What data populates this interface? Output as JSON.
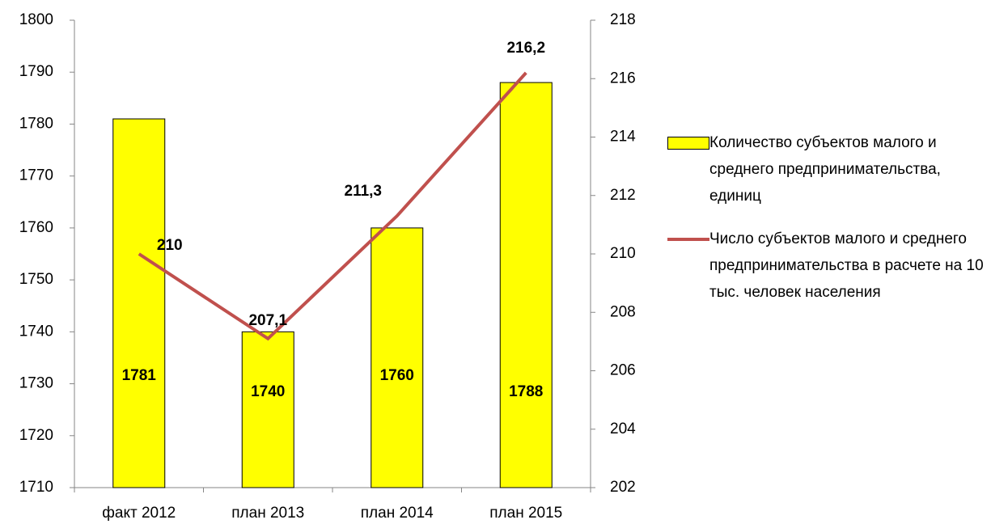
{
  "chart_data": {
    "type": "bar_line",
    "categories": [
      "факт 2012",
      "план 2013",
      "план 2014",
      "план 2015"
    ],
    "series": [
      {
        "name": "Количество субъектов малого и среднего предпринимательства, единиц",
        "type": "bar",
        "color": "#ffff00",
        "values": [
          1781,
          1740,
          1760,
          1788
        ]
      },
      {
        "name": "Число субъектов малого и среднего предпринимательства в расчете на 10 тыс. человек населения",
        "type": "line",
        "axis": "y2",
        "color": "#c0504d",
        "values": [
          210,
          207.1,
          211.3,
          216.2
        ],
        "value_labels": [
          "210",
          "207,1",
          "211,3",
          "216,2"
        ]
      }
    ],
    "ylim": [
      1710,
      1800
    ],
    "yticks": [
      1710,
      1720,
      1730,
      1740,
      1750,
      1760,
      1770,
      1780,
      1790,
      1800
    ],
    "y2lim": [
      202,
      218
    ],
    "y2ticks": [
      202,
      204,
      206,
      208,
      210,
      212,
      214,
      216,
      218
    ],
    "legend": "right"
  }
}
